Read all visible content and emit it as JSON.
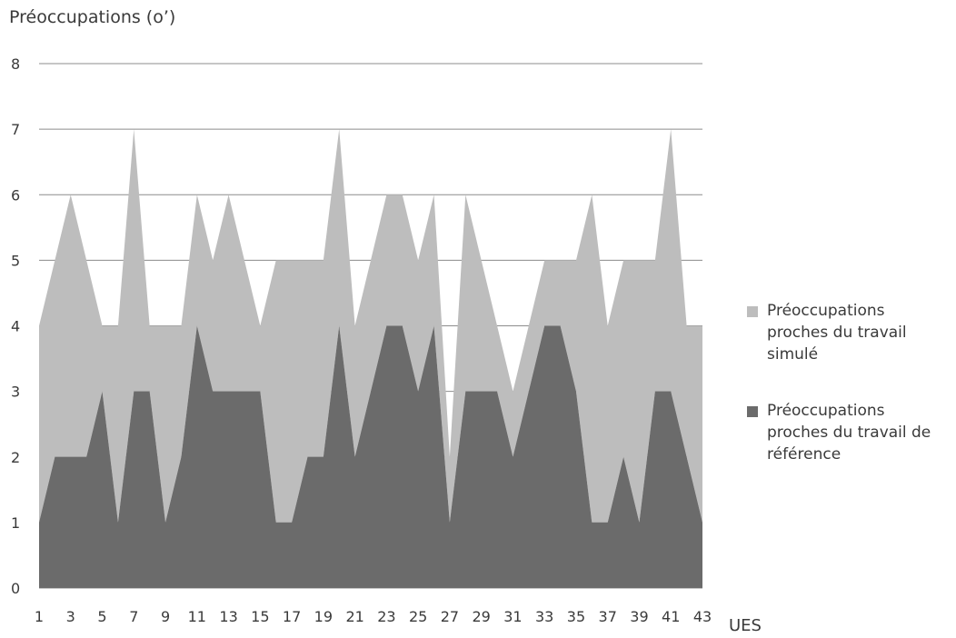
{
  "chart_data": {
    "type": "area",
    "stacked": true,
    "ylabel": "Préoccupations (o’)",
    "xlabel": "UES",
    "ylim": [
      0,
      8
    ],
    "yticks": [
      0,
      1,
      2,
      3,
      4,
      5,
      6,
      7,
      8
    ],
    "x": [
      1,
      2,
      3,
      4,
      5,
      6,
      7,
      8,
      9,
      10,
      11,
      12,
      13,
      14,
      15,
      16,
      17,
      18,
      19,
      20,
      21,
      22,
      23,
      24,
      25,
      26,
      27,
      28,
      29,
      30,
      31,
      32,
      33,
      34,
      35,
      36,
      37,
      38,
      39,
      40,
      41,
      42,
      43
    ],
    "xtick_labels": [
      "1",
      "3",
      "5",
      "7",
      "9",
      "11",
      "13",
      "15",
      "17",
      "19",
      "21",
      "23",
      "25",
      "27",
      "29",
      "31",
      "33",
      "35",
      "37",
      "39",
      "41",
      "43"
    ],
    "grid": true,
    "legend_position": "right",
    "series": [
      {
        "name": "Préoccupations proches du travail de référence",
        "color": "#6b6b6b",
        "values": [
          1,
          2,
          2,
          2,
          3,
          1,
          3,
          3,
          1,
          2,
          4,
          3,
          3,
          3,
          3,
          1,
          1,
          2,
          2,
          4,
          2,
          3,
          4,
          4,
          3,
          4,
          1,
          3,
          3,
          3,
          2,
          3,
          4,
          4,
          3,
          1,
          1,
          2,
          1,
          3,
          3,
          2,
          1
        ]
      },
      {
        "name": "Préoccupations proches du travail simulé",
        "color": "#bdbdbd",
        "values": [
          3,
          3,
          4,
          3,
          1,
          3,
          4,
          1,
          3,
          2,
          2,
          2,
          3,
          2,
          1,
          4,
          4,
          3,
          3,
          3,
          2,
          2,
          2,
          2,
          2,
          2,
          1,
          3,
          2,
          1,
          1,
          1,
          1,
          1,
          2,
          5,
          3,
          3,
          4,
          2,
          4,
          2,
          3
        ]
      }
    ],
    "totals": [
      4,
      5,
      6,
      5,
      4,
      4,
      7,
      4,
      4,
      4,
      6,
      5,
      6,
      5,
      4,
      5,
      5,
      5,
      5,
      7,
      4,
      5,
      6,
      6,
      5,
      6,
      2,
      6,
      5,
      4,
      3,
      4,
      5,
      5,
      5,
      6,
      4,
      5,
      5,
      5,
      7,
      4,
      4
    ]
  },
  "legend": {
    "items": [
      {
        "label": "Préoccupations proches du travail simulé",
        "color": "#bdbdbd"
      },
      {
        "label": "Préoccupations proches du travail de référence",
        "color": "#6b6b6b"
      }
    ]
  }
}
